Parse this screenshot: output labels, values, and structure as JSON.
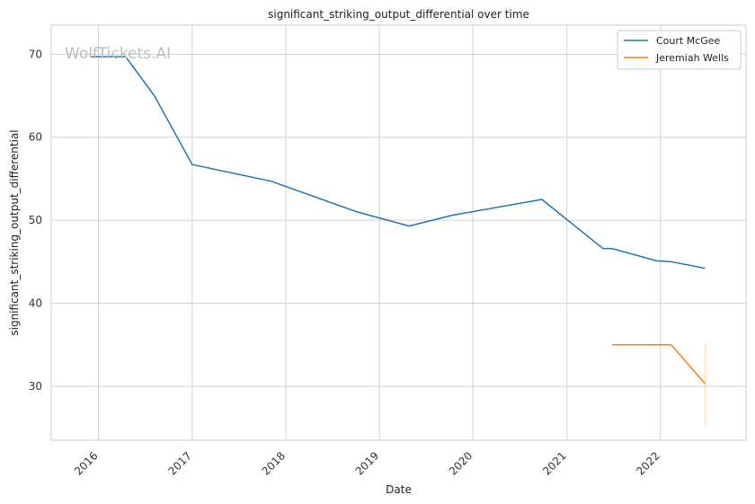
{
  "chart_data": {
    "type": "line",
    "title": "significant_striking_output_differential over time",
    "xlabel": "Date",
    "ylabel": "significant_striking_output_differential",
    "watermark": "WolfTickets.AI",
    "xlim": [
      "2015-07-01",
      "2022-12-01"
    ],
    "ylim": [
      23.5,
      73.5
    ],
    "x_ticks": [
      "2016",
      "2017",
      "2018",
      "2019",
      "2020",
      "2021",
      "2022"
    ],
    "y_ticks": [
      30,
      40,
      50,
      60,
      70
    ],
    "grid": true,
    "legend_position": "top-right",
    "series": [
      {
        "name": "Court McGee",
        "color": "#1f77b4",
        "points": [
          {
            "x": "2015-12-05",
            "y": 69.7
          },
          {
            "x": "2016-04-16",
            "y": 69.7
          },
          {
            "x": "2016-08-06",
            "y": 65.0
          },
          {
            "x": "2017-01-01",
            "y": 56.7
          },
          {
            "x": "2017-11-04",
            "y": 54.7
          },
          {
            "x": "2018-10-06",
            "y": 51.0
          },
          {
            "x": "2019-04-27",
            "y": 49.3
          },
          {
            "x": "2019-10-12",
            "y": 50.6
          },
          {
            "x": "2020-09-26",
            "y": 52.5
          },
          {
            "x": "2021-05-22",
            "y": 46.6
          },
          {
            "x": "2021-06-26",
            "y": 46.6
          },
          {
            "x": "2021-12-18",
            "y": 45.1
          },
          {
            "x": "2022-02-12",
            "y": 45.0
          },
          {
            "x": "2022-06-25",
            "y": 44.2
          }
        ]
      },
      {
        "name": "Jeremiah Wells",
        "color": "#ff7f0e",
        "points": [
          {
            "x": "2021-06-26",
            "y": 35.0
          },
          {
            "x": "2022-02-12",
            "y": 35.0
          },
          {
            "x": "2022-06-25",
            "y": 30.3
          }
        ],
        "band": {
          "x": "2022-06-25",
          "low": 25.3,
          "high": 35.3
        }
      }
    ]
  }
}
